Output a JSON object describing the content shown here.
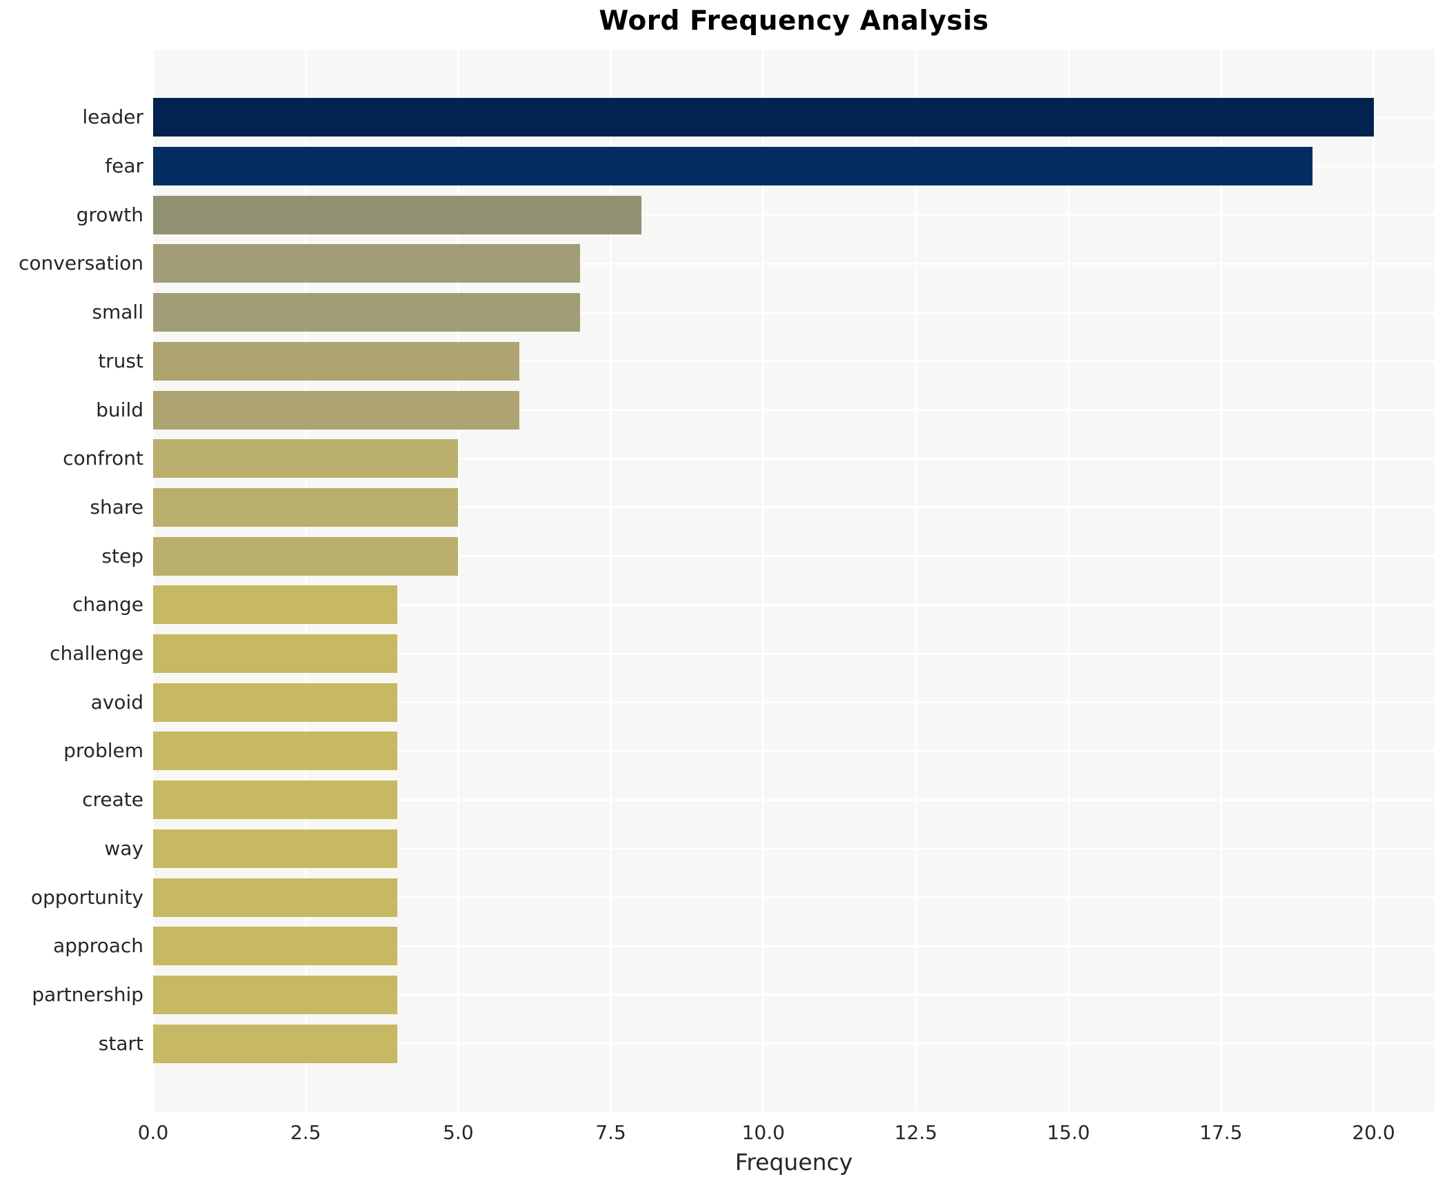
{
  "title": "Word Frequency Analysis",
  "chart_data": {
    "type": "bar",
    "orientation": "horizontal",
    "title": "Word Frequency Analysis",
    "xlabel": "Frequency",
    "ylabel": "",
    "categories": [
      "leader",
      "fear",
      "growth",
      "conversation",
      "small",
      "trust",
      "build",
      "confront",
      "share",
      "step",
      "change",
      "challenge",
      "avoid",
      "problem",
      "create",
      "way",
      "opportunity",
      "approach",
      "partnership",
      "start"
    ],
    "values": [
      20,
      19,
      8,
      7,
      7,
      6,
      6,
      5,
      5,
      5,
      4,
      4,
      4,
      4,
      4,
      4,
      4,
      4,
      4,
      4
    ],
    "bar_colors": [
      "#022350",
      "#032d60",
      "#919174",
      "#a19d77",
      "#a19d77",
      "#ada471",
      "#ada471",
      "#b9ae6c",
      "#b9ae6c",
      "#b9ae6c",
      "#c7b963",
      "#c7b963",
      "#c7b963",
      "#c7b963",
      "#c7b963",
      "#c7b963",
      "#c7b963",
      "#c7b963",
      "#c7b963",
      "#c7b963"
    ],
    "xticks": [
      0.0,
      2.5,
      5.0,
      7.5,
      10.0,
      12.5,
      15.0,
      17.5,
      20.0
    ],
    "xtick_labels": [
      "0.0",
      "2.5",
      "5.0",
      "7.5",
      "10.0",
      "12.5",
      "15.0",
      "17.5",
      "20.0"
    ],
    "xlim": [
      0,
      21
    ],
    "grid": true,
    "legend": false,
    "plot_bg": "#f7f7f5",
    "grid_color": "#ffffff",
    "text_color": "#262626",
    "title_color": "#000000"
  }
}
